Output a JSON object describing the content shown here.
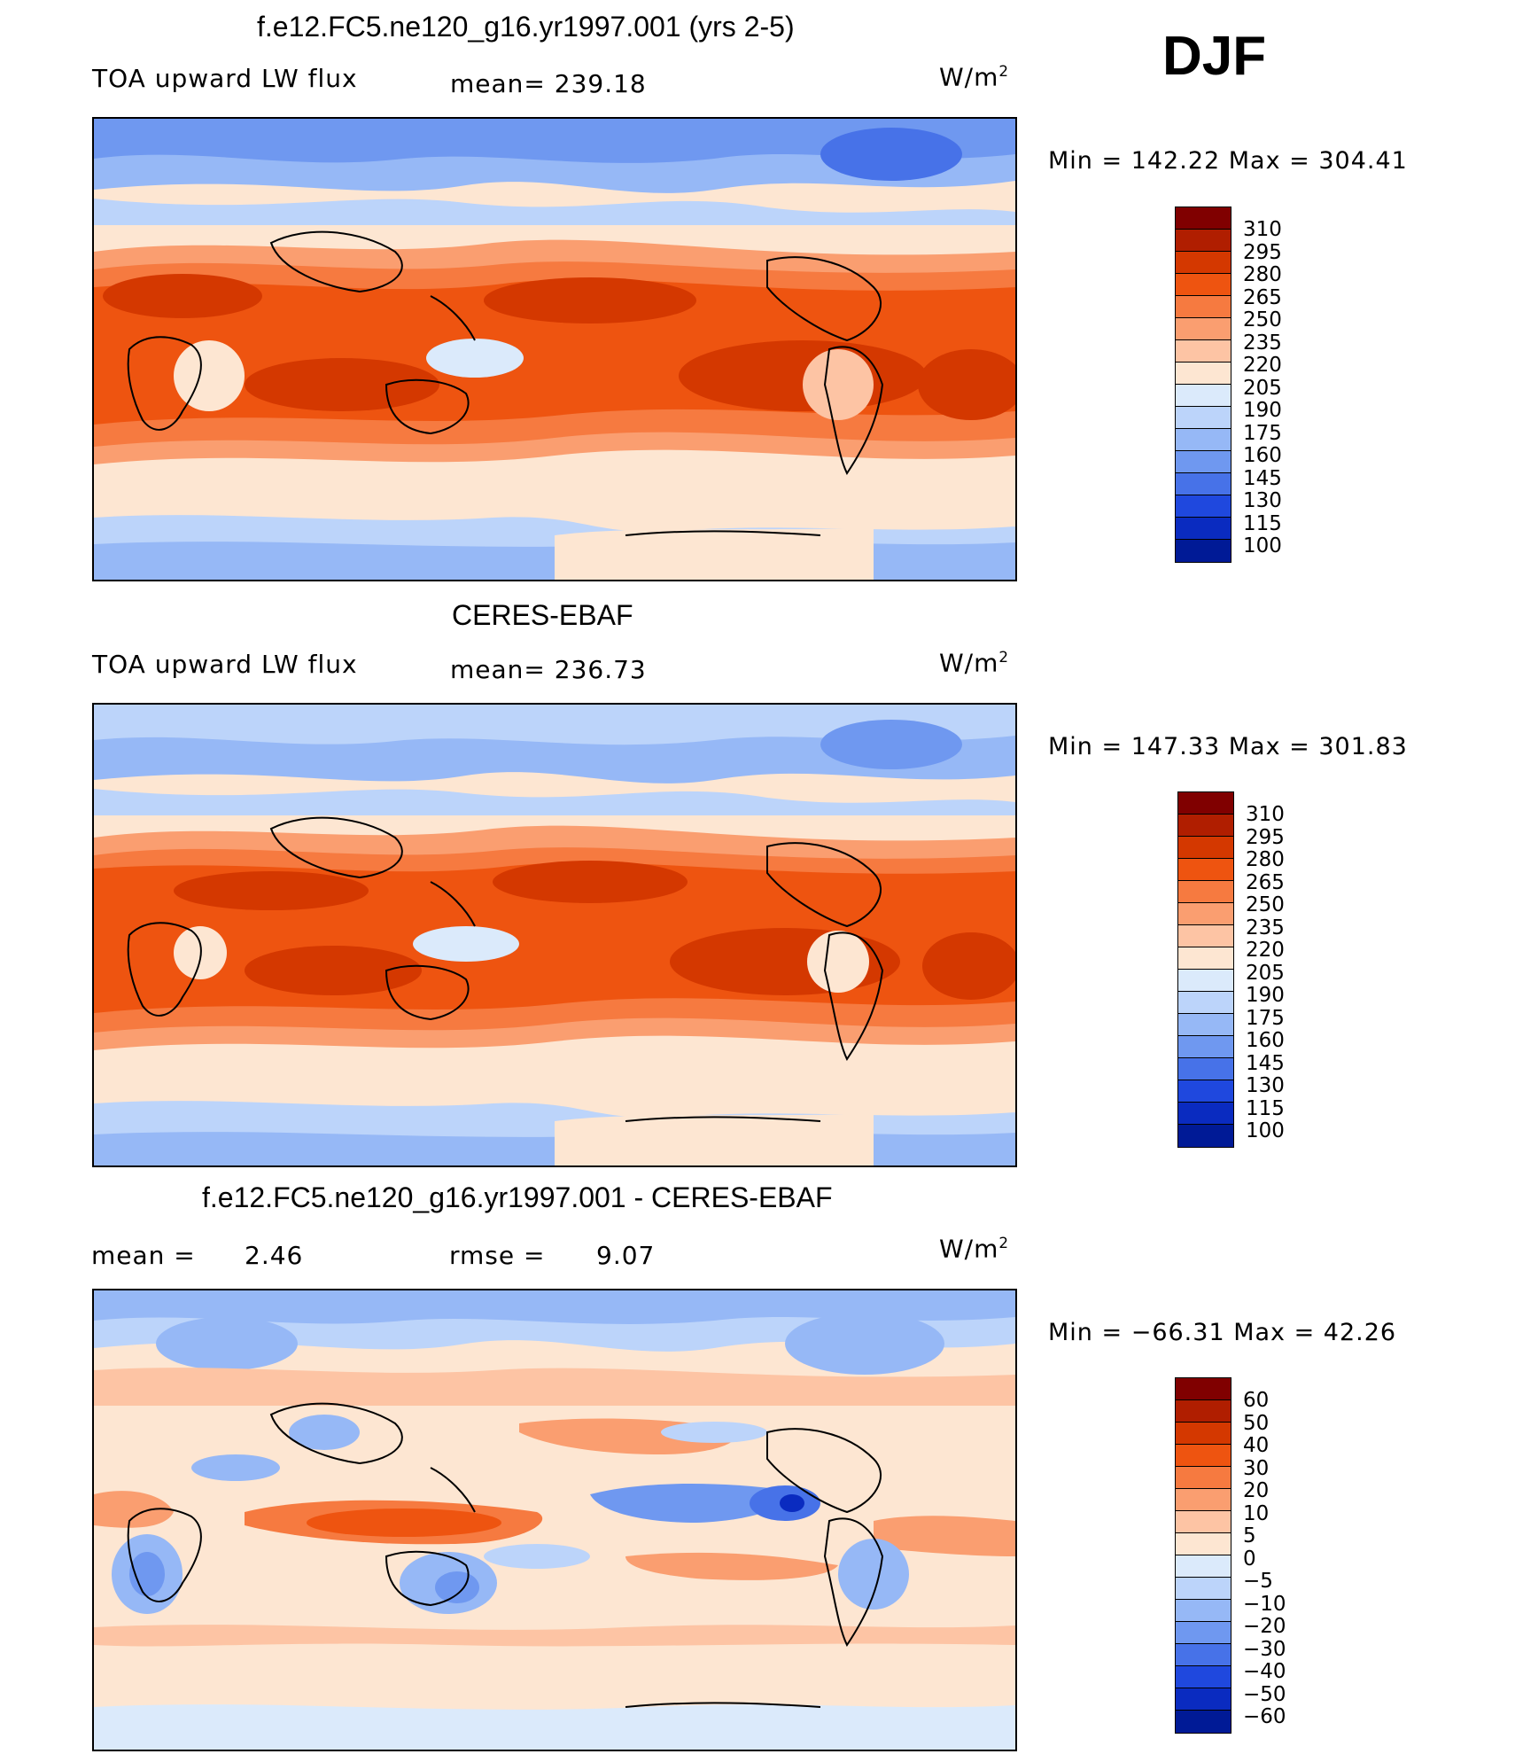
{
  "season": "DJF",
  "units_base": "W/m",
  "units_exp": "2",
  "panels": [
    {
      "title": "f.e12.FC5.ne120_g16.yr1997.001 (yrs 2-5)",
      "left_label": "TOA upward LW flux",
      "mid_label": "mean= 239.18",
      "minmax": "Min = 142.22 Max = 304.41",
      "colorbar_labels": [
        "310",
        "295",
        "280",
        "265",
        "250",
        "235",
        "220",
        "205",
        "190",
        "175",
        "160",
        "145",
        "130",
        "115",
        "100"
      ]
    },
    {
      "title": "CERES-EBAF",
      "left_label": "TOA upward LW flux",
      "mid_label": "mean= 236.73",
      "minmax": "Min = 147.33 Max = 301.83",
      "colorbar_labels": [
        "310",
        "295",
        "280",
        "265",
        "250",
        "235",
        "220",
        "205",
        "190",
        "175",
        "160",
        "145",
        "130",
        "115",
        "100"
      ]
    },
    {
      "title": "f.e12.FC5.ne120_g16.yr1997.001 - CERES-EBAF",
      "left_label": "mean =",
      "left_value": "2.46",
      "mid_label": "rmse =",
      "mid_value": "9.07",
      "minmax": "Min = −66.31 Max =  42.26",
      "colorbar_labels": [
        "60",
        "50",
        "40",
        "30",
        "20",
        "10",
        "5",
        "0",
        "−5",
        "−10",
        "−20",
        "−30",
        "−40",
        "−50",
        "−60"
      ]
    }
  ],
  "colors": {
    "palette": [
      "#800000",
      "#b01e00",
      "#d43800",
      "#ee5410",
      "#f67a40",
      "#fa9e70",
      "#fdc4a4",
      "#fde6d2",
      "#dbeafb",
      "#bcd4fa",
      "#96b8f6",
      "#6f98f0",
      "#4772e8",
      "#1f48de",
      "#0a2bc0",
      "#001a96"
    ],
    "map_border": "#000000"
  }
}
